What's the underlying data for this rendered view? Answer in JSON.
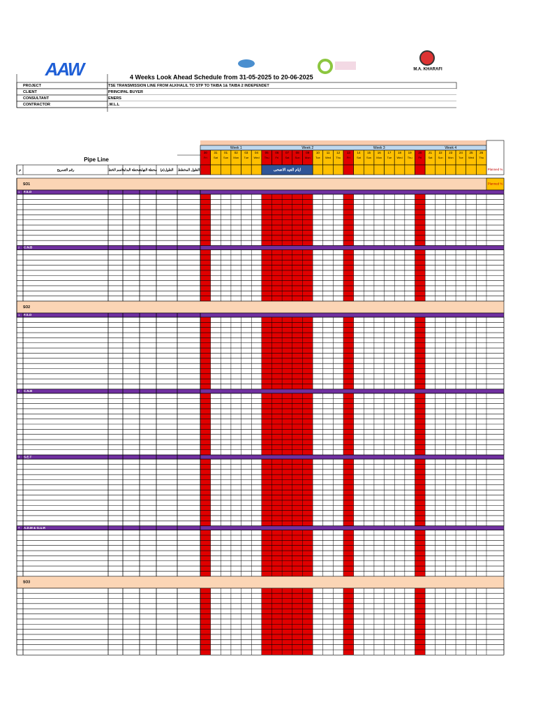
{
  "logos": {
    "aaw": "AAW",
    "kharafi": "M.A. KHARAFI"
  },
  "title": "4 Weeks Look Ahead      Schedule      from 31-05-2025    to    20-06-2025",
  "info": [
    {
      "label": "PROJECT",
      "value": "TSE TRANSMISSION LINE FROM ALKHALIL TO STP TO TAIBA 1& TAIBA 2 INDEPENDET"
    },
    {
      "label": "CLIENT",
      "value": "PRINCIPAL BUYER"
    },
    {
      "label": "CONSULTANT",
      "value": "ENERS"
    },
    {
      "label": "CONTRACTOR",
      "value": ".W.L.L"
    }
  ],
  "header": {
    "pipe_line": "Pipe Line",
    "columns": [
      "م",
      "رقم التسريح",
      "اسم الخط",
      "محطة البداية",
      "محطة النهاية",
      "الطول(م)",
      "الطول المخطط"
    ],
    "planned": "Planned %",
    "holiday": "ايام العيد الاضحى"
  },
  "calendar": {
    "weeks": [
      "Week 1",
      "Week 2",
      "Week 3",
      "Week 4"
    ],
    "days": [
      "30",
      "31",
      "01",
      "02",
      "03",
      "04",
      "05",
      "06",
      "07",
      "08",
      "09",
      "10",
      "11",
      "12",
      "13",
      "14",
      "15",
      "16",
      "17",
      "18",
      "19",
      "20",
      "21",
      "22",
      "23",
      "24",
      "25",
      "26"
    ],
    "weekdays": [
      "Fri",
      "Sat",
      "Sun",
      "Mon",
      "Tue",
      "Wed",
      "Thu",
      "Fri",
      "Sat",
      "Sun",
      "Mon",
      "Tue",
      "Wed",
      "Thu",
      "Fri",
      "Sat",
      "Sun",
      "Mon",
      "Tue",
      "Wed",
      "Thu",
      "Fri",
      "Sat",
      "Sun",
      "Mon",
      "Tue",
      "Wed",
      "Thu"
    ]
  },
  "sections": [
    {
      "name": "SO1",
      "groups": [
        {
          "no": "1",
          "name": "F.S.O"
        },
        {
          "no": "2",
          "name": "C.N.B"
        }
      ]
    },
    {
      "name": "SO2",
      "groups": [
        {
          "no": "1",
          "name": "F.S.O"
        },
        {
          "no": "2",
          "name": "C.N.B"
        },
        {
          "no": "3",
          "name": "S.E.T"
        },
        {
          "no": "4",
          "name": "A.D.M & G.U.R"
        }
      ]
    },
    {
      "name": "SO3",
      "groups": []
    }
  ]
}
